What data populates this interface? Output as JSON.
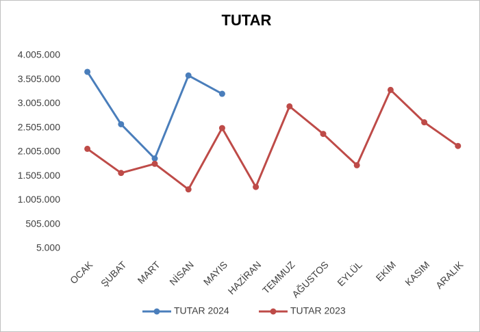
{
  "chart_data": {
    "type": "line",
    "title": "TUTAR",
    "categories": [
      "OCAK",
      "ŞUBAT",
      "MART",
      "NİSAN",
      "MAYIS",
      "HAZİRAN",
      "TEMMUZ",
      "AĞUSTOS",
      "EYLÜL",
      "EKİM",
      "KASIM",
      "ARALIK"
    ],
    "series": [
      {
        "name": "TUTAR 2024",
        "color": "#4a7ebb",
        "values": [
          3665000,
          2580000,
          1870000,
          3590000,
          3210000,
          null,
          null,
          null,
          null,
          null,
          null,
          null
        ]
      },
      {
        "name": "TUTAR 2023",
        "color": "#be4b48",
        "values": [
          2070000,
          1570000,
          1760000,
          1230000,
          2500000,
          1280000,
          2950000,
          2380000,
          1730000,
          3290000,
          2620000,
          2130000
        ]
      }
    ],
    "ylim": [
      5000,
      4005000
    ],
    "yticks": [
      {
        "value": 5000,
        "label": "5.000"
      },
      {
        "value": 505000,
        "label": "505.000"
      },
      {
        "value": 1005000,
        "label": "1.005.000"
      },
      {
        "value": 1505000,
        "label": "1.505.000"
      },
      {
        "value": 2005000,
        "label": "2.005.000"
      },
      {
        "value": 2505000,
        "label": "2.505.000"
      },
      {
        "value": 3005000,
        "label": "3.005.000"
      },
      {
        "value": 3505000,
        "label": "3.505.000"
      },
      {
        "value": 4005000,
        "label": "4.005.000"
      }
    ],
    "grid": false,
    "legend": "bottom"
  }
}
